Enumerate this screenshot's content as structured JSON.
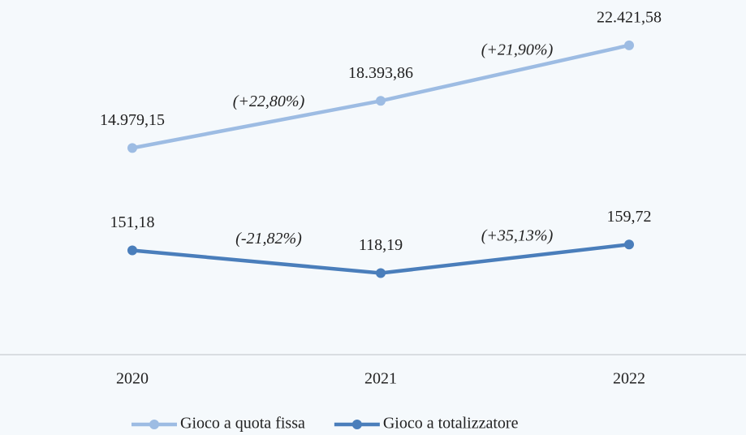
{
  "chart_data": {
    "type": "line",
    "categories": [
      "2020",
      "2021",
      "2022"
    ],
    "series": [
      {
        "name": "Gioco a quota fissa",
        "color": "#9dbce3",
        "values": [
          14979.15,
          18393.86,
          22421.58
        ],
        "value_labels": [
          "14.979,15",
          "18.393,86",
          "22.421,58"
        ],
        "change_labels": [
          "(+22,80%)",
          "(+21,90%)"
        ]
      },
      {
        "name": "Gioco a totalizzatore",
        "color": "#4a7ebb",
        "axis": "y2",
        "values": [
          151.18,
          118.19,
          159.72
        ],
        "value_labels": [
          "151,18",
          "118,19",
          "159,72"
        ],
        "change_labels": [
          "(-21,82%)",
          "(+35,13%)"
        ]
      }
    ],
    "ylim": [
      0,
      25000
    ],
    "y2lim": [
      0,
      500
    ],
    "legend": "bottom"
  }
}
